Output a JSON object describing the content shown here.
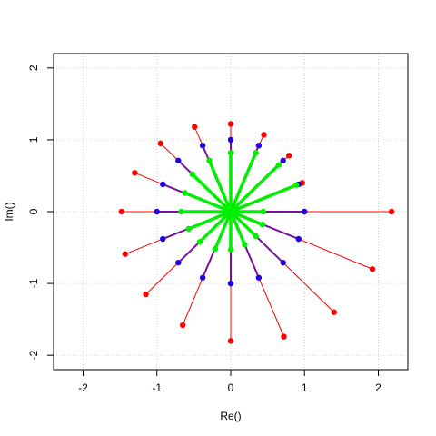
{
  "chart_data": {
    "type": "scatter",
    "title": "",
    "xlabel": "Re()",
    "ylabel": "Im()",
    "xlim": [
      -2.4,
      2.4
    ],
    "ylim": [
      -2.2,
      2.2
    ],
    "xticks": [
      "-2",
      "-1",
      "0",
      "1",
      "2"
    ],
    "yticks": [
      "-2",
      "-1",
      "0",
      "1",
      "2"
    ],
    "grid": true,
    "legend": "none",
    "colors": {
      "red": "#ff0000",
      "blue": "#2200dd",
      "purple": "#7a0f9c",
      "green": "#00ee00",
      "grid": "#d3d3d3"
    },
    "series": [
      {
        "color": "red",
        "points": [
          [
            0.0,
            1.22
          ],
          [
            0.45,
            1.07
          ],
          [
            0.79,
            0.78
          ],
          [
            0.97,
            0.4
          ],
          [
            2.18,
            0.0
          ],
          [
            1.92,
            -0.8
          ],
          [
            1.4,
            -1.4
          ],
          [
            0.72,
            -1.74
          ],
          [
            0.0,
            -1.8
          ],
          [
            -0.65,
            -1.58
          ],
          [
            -1.15,
            -1.15
          ],
          [
            -1.43,
            -0.59
          ],
          [
            -1.48,
            0.0
          ],
          [
            -1.3,
            0.54
          ],
          [
            -0.95,
            0.95
          ],
          [
            -0.49,
            1.18
          ]
        ]
      },
      {
        "color": "blue",
        "points": [
          [
            0.0,
            1.0
          ],
          [
            0.38,
            0.92
          ],
          [
            0.71,
            0.71
          ],
          [
            0.92,
            0.38
          ],
          [
            1.0,
            0.0
          ],
          [
            0.92,
            -0.38
          ],
          [
            0.71,
            -0.71
          ],
          [
            0.38,
            -0.92
          ],
          [
            0.0,
            -1.0
          ],
          [
            -0.38,
            -0.92
          ],
          [
            -0.71,
            -0.71
          ],
          [
            -0.92,
            -0.38
          ],
          [
            -1.0,
            0.0
          ],
          [
            -0.92,
            0.38
          ],
          [
            -0.71,
            0.71
          ],
          [
            -0.38,
            0.92
          ]
        ]
      },
      {
        "color": "green",
        "points": [
          [
            0.0,
            0.82
          ],
          [
            0.34,
            0.82
          ],
          [
            0.65,
            0.65
          ],
          [
            0.89,
            0.37
          ],
          [
            0.44,
            0.0
          ],
          [
            0.43,
            -0.18
          ],
          [
            0.34,
            -0.34
          ],
          [
            0.19,
            -0.46
          ],
          [
            0.0,
            -0.53
          ],
          [
            -0.21,
            -0.52
          ],
          [
            -0.42,
            -0.42
          ],
          [
            -0.57,
            -0.24
          ],
          [
            -0.67,
            0.0
          ],
          [
            -0.62,
            0.26
          ],
          [
            -0.52,
            0.52
          ],
          [
            -0.29,
            0.71
          ]
        ]
      }
    ]
  }
}
